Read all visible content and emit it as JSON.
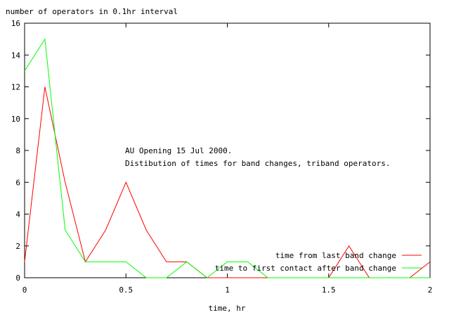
{
  "chart_data": {
    "type": "line",
    "ylabel": "number of operators in 0.1hr interval",
    "xlabel": "time, hr",
    "xlim": [
      0,
      2
    ],
    "ylim": [
      0,
      16
    ],
    "x_ticks": [
      0,
      0.5,
      1,
      1.5,
      2
    ],
    "x_tick_labels": [
      "0",
      "0.5",
      "1",
      "1.5",
      "2"
    ],
    "y_ticks": [
      0,
      2,
      4,
      6,
      8,
      10,
      12,
      14,
      16
    ],
    "y_tick_labels": [
      "0",
      "2",
      "4",
      "6",
      "8",
      "10",
      "12",
      "14",
      "16"
    ],
    "grid": false,
    "legend_position": "bottom-right",
    "annotations": [
      "AU Opening 15 Jul 2000.",
      "Distibution of times for band changes, triband operators."
    ],
    "x": [
      0,
      0.1,
      0.2,
      0.3,
      0.4,
      0.5,
      0.6,
      0.7,
      0.8,
      0.9,
      1.0,
      1.1,
      1.2,
      1.3,
      1.4,
      1.5,
      1.6,
      1.7,
      1.8,
      1.9,
      2.0
    ],
    "series": [
      {
        "name": "time from last band change",
        "color": "#ff0000",
        "values": [
          1,
          12,
          6,
          1,
          3,
          6,
          3,
          1,
          1,
          0,
          0,
          0,
          0,
          0,
          0,
          0,
          2,
          0,
          0,
          0,
          1
        ]
      },
      {
        "name": "time to first contact after band change",
        "color": "#00ff00",
        "values": [
          13,
          15,
          3,
          1,
          1,
          1,
          0,
          0,
          1,
          0,
          1,
          1,
          0,
          0,
          0,
          0,
          0,
          0,
          0,
          0,
          0
        ]
      }
    ]
  }
}
